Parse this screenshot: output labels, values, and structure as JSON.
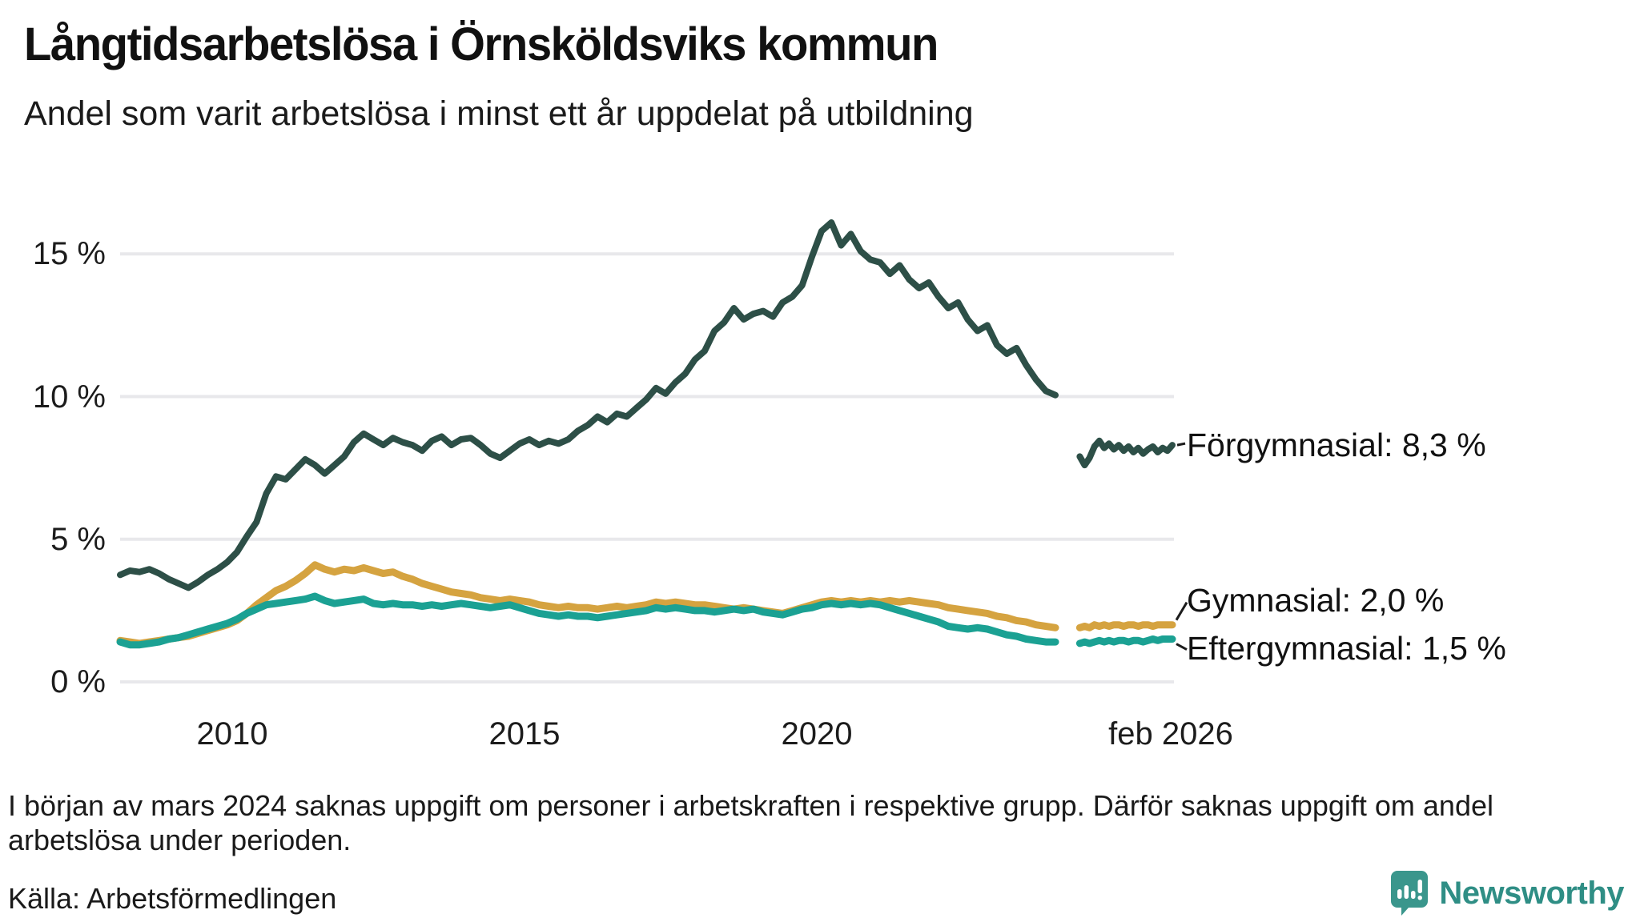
{
  "title": "Långtidsarbetslösa i Örnsköldsviks kommun",
  "subtitle": "Andel som varit arbetslösa i minst ett år uppdelat på utbildning",
  "footnote": "I början av mars 2024 saknas uppgift om personer i arbetskraften i respektive grupp. Därför saknas uppgift om andel arbetslösa under perioden.",
  "source": "Källa: Arbetsförmedlingen",
  "brand": {
    "name": "Newsworthy",
    "text_color": "#2f8e85",
    "logo_color": "#3a968c"
  },
  "chart_data": {
    "type": "line",
    "title": "Långtidsarbetslösa i Örnsköldsviks kommun",
    "subtitle": "Andel som varit arbetslösa i minst ett år uppdelat på utbildning",
    "unit": "%",
    "grid_color": "#e8e8eb",
    "grid_on": true,
    "x_range_years": [
      2008.08,
      2026.08
    ],
    "y_axis": {
      "min": 0,
      "max": 16.5,
      "ticks": [
        {
          "value": 15,
          "label": "15 %"
        },
        {
          "value": 10,
          "label": "10 %"
        },
        {
          "value": 5,
          "label": "5 %"
        },
        {
          "value": 0,
          "label": "0 %"
        }
      ]
    },
    "x_axis": {
      "ticks": [
        {
          "year": 2010,
          "label": "2010"
        },
        {
          "year": 2015,
          "label": "2015"
        },
        {
          "year": 2020,
          "label": "2020"
        },
        {
          "year": 2026.05,
          "label": "feb 2026"
        }
      ]
    },
    "data_gap": {
      "from_year": 2024.17,
      "to_year": 2024.5,
      "reason": "saknas uppgift mars 2024"
    },
    "series": [
      {
        "name": "Förgymnasial",
        "label": "Förgymnasial: 8,3 %",
        "last_value": "8,3 %",
        "color": "#2d4f47",
        "stroke_width": 8,
        "x_start": 2008.083,
        "x_step": 0.16667,
        "values": [
          3.75,
          3.9,
          3.85,
          3.95,
          3.8,
          3.6,
          3.45,
          3.3,
          3.5,
          3.75,
          3.95,
          4.2,
          4.55,
          5.1,
          5.6,
          6.6,
          7.2,
          7.1,
          7.45,
          7.8,
          7.6,
          7.3,
          7.6,
          7.9,
          8.4,
          8.7,
          8.5,
          8.3,
          8.55,
          8.4,
          8.3,
          8.1,
          8.45,
          8.6,
          8.3,
          8.5,
          8.55,
          8.3,
          8.0,
          7.85,
          8.1,
          8.35,
          8.5,
          8.3,
          8.45,
          8.35,
          8.5,
          8.8,
          9.0,
          9.3,
          9.1,
          9.4,
          9.3,
          9.6,
          9.9,
          10.3,
          10.1,
          10.5,
          10.8,
          11.3,
          11.6,
          12.3,
          12.6,
          13.1,
          12.7,
          12.9,
          13.0,
          12.8,
          13.3,
          13.5,
          13.9,
          14.9,
          15.8,
          16.1,
          15.3,
          15.7,
          15.1,
          14.8,
          14.7,
          14.3,
          14.6,
          14.1,
          13.8,
          14.0,
          13.5,
          13.1,
          13.3,
          12.7,
          12.3,
          12.5,
          11.8,
          11.5,
          11.7,
          11.1,
          10.6,
          10.2,
          10.05
        ],
        "x_resume": 2024.5,
        "x_step_after": 0.08333,
        "values_after_gap": [
          7.9,
          7.6,
          7.85,
          8.25,
          8.45,
          8.2,
          8.35,
          8.15,
          8.3,
          8.1,
          8.25,
          8.05,
          8.2,
          8.0,
          8.15,
          8.25,
          8.05,
          8.2,
          8.1,
          8.3
        ]
      },
      {
        "name": "Gymnasial",
        "label": "Gymnasial: 2,0 %",
        "last_value": "2,0 %",
        "color": "#d5a340",
        "stroke_width": 9,
        "x_start": 2008.083,
        "x_step": 0.16667,
        "values": [
          1.45,
          1.4,
          1.35,
          1.4,
          1.45,
          1.5,
          1.55,
          1.6,
          1.7,
          1.8,
          1.9,
          2.0,
          2.15,
          2.4,
          2.7,
          2.95,
          3.2,
          3.35,
          3.55,
          3.8,
          4.1,
          3.95,
          3.85,
          3.95,
          3.9,
          4.0,
          3.9,
          3.8,
          3.85,
          3.7,
          3.6,
          3.45,
          3.35,
          3.25,
          3.15,
          3.1,
          3.05,
          2.95,
          2.9,
          2.85,
          2.9,
          2.85,
          2.8,
          2.7,
          2.65,
          2.6,
          2.65,
          2.6,
          2.6,
          2.55,
          2.6,
          2.65,
          2.6,
          2.65,
          2.7,
          2.8,
          2.75,
          2.8,
          2.75,
          2.7,
          2.7,
          2.65,
          2.6,
          2.55,
          2.6,
          2.55,
          2.5,
          2.45,
          2.4,
          2.5,
          2.6,
          2.7,
          2.8,
          2.85,
          2.8,
          2.85,
          2.8,
          2.85,
          2.8,
          2.85,
          2.8,
          2.85,
          2.8,
          2.75,
          2.7,
          2.6,
          2.55,
          2.5,
          2.45,
          2.4,
          2.3,
          2.25,
          2.15,
          2.1,
          2.0,
          1.95,
          1.9
        ],
        "x_resume": 2024.5,
        "x_step_after": 0.08333,
        "values_after_gap": [
          1.9,
          1.95,
          1.9,
          2.0,
          1.95,
          2.0,
          1.95,
          2.0,
          2.0,
          1.95,
          2.0,
          2.0,
          1.95,
          2.0,
          2.0,
          1.95,
          2.0,
          2.0,
          2.0,
          2.0
        ]
      },
      {
        "name": "Eftergymnasial",
        "label": "Eftergymnasial: 1,5 %",
        "last_value": "1,5 %",
        "color": "#1ba193",
        "stroke_width": 9,
        "x_start": 2008.083,
        "x_step": 0.16667,
        "values": [
          1.4,
          1.3,
          1.3,
          1.35,
          1.4,
          1.5,
          1.55,
          1.65,
          1.75,
          1.85,
          1.95,
          2.05,
          2.2,
          2.4,
          2.55,
          2.7,
          2.75,
          2.8,
          2.85,
          2.9,
          3.0,
          2.85,
          2.75,
          2.8,
          2.85,
          2.9,
          2.75,
          2.7,
          2.75,
          2.7,
          2.7,
          2.65,
          2.7,
          2.65,
          2.7,
          2.75,
          2.7,
          2.65,
          2.6,
          2.65,
          2.7,
          2.6,
          2.5,
          2.4,
          2.35,
          2.3,
          2.35,
          2.3,
          2.3,
          2.25,
          2.3,
          2.35,
          2.4,
          2.45,
          2.5,
          2.6,
          2.55,
          2.6,
          2.55,
          2.5,
          2.5,
          2.45,
          2.5,
          2.55,
          2.5,
          2.55,
          2.45,
          2.4,
          2.35,
          2.45,
          2.55,
          2.6,
          2.7,
          2.75,
          2.7,
          2.75,
          2.7,
          2.75,
          2.7,
          2.6,
          2.5,
          2.4,
          2.3,
          2.2,
          2.1,
          1.95,
          1.9,
          1.85,
          1.9,
          1.85,
          1.75,
          1.65,
          1.6,
          1.5,
          1.45,
          1.4,
          1.4
        ],
        "x_resume": 2024.5,
        "x_step_after": 0.08333,
        "values_after_gap": [
          1.35,
          1.4,
          1.35,
          1.4,
          1.45,
          1.4,
          1.45,
          1.4,
          1.45,
          1.45,
          1.4,
          1.45,
          1.45,
          1.4,
          1.45,
          1.5,
          1.45,
          1.5,
          1.5,
          1.5
        ]
      }
    ]
  }
}
